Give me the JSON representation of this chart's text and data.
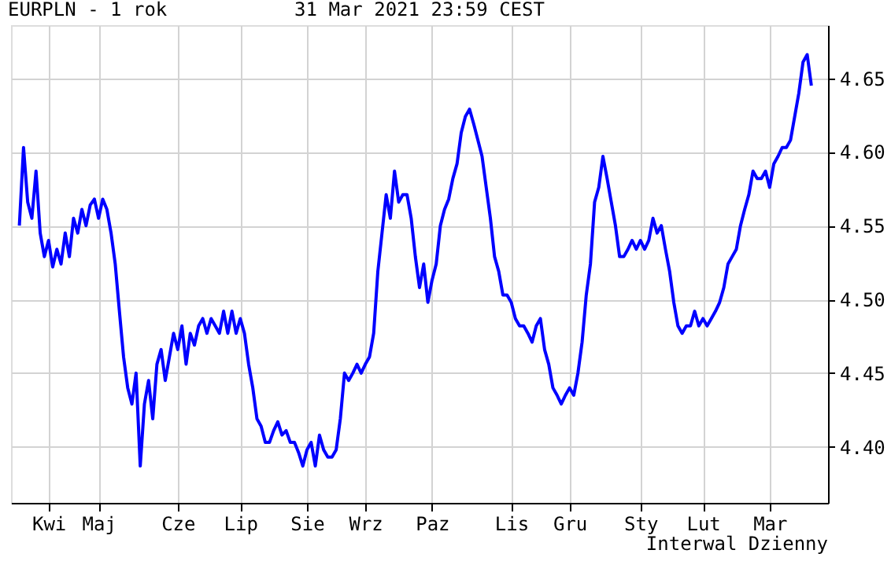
{
  "chart_data": {
    "type": "line",
    "title": "EURPLN - 1 rok",
    "annotations": [
      "31 Mar 2021 23:59 CEST",
      "Interwal Dzienny"
    ],
    "categories": [
      null,
      null,
      null,
      null,
      null,
      null,
      null,
      "Kwi",
      null,
      null,
      null,
      null,
      null,
      null,
      null,
      null,
      null,
      null,
      null,
      "Maj",
      null,
      null,
      null,
      null,
      null,
      null,
      null,
      null,
      null,
      null,
      null,
      null,
      null,
      null,
      null,
      null,
      null,
      null,
      "Cze",
      null,
      null,
      null,
      null,
      null,
      null,
      null,
      null,
      null,
      null,
      null,
      null,
      null,
      null,
      "Lip",
      null,
      null,
      null,
      null,
      null,
      null,
      null,
      null,
      null,
      null,
      null,
      null,
      null,
      null,
      null,
      "Sie",
      null,
      null,
      null,
      null,
      null,
      null,
      null,
      null,
      null,
      null,
      null,
      null,
      null,
      "Wrz",
      null,
      null,
      null,
      null,
      null,
      null,
      null,
      null,
      null,
      null,
      null,
      null,
      null,
      null,
      null,
      "Paz",
      null,
      null,
      null,
      null,
      null,
      null,
      null,
      null,
      null,
      null,
      null,
      null,
      null,
      null,
      null,
      null,
      null,
      null,
      "Lis",
      null,
      null,
      null,
      null,
      null,
      null,
      null,
      null,
      null,
      null,
      null,
      null,
      null,
      "Gru",
      null,
      null,
      null,
      null,
      null,
      null,
      null,
      null,
      null,
      null,
      null,
      null,
      null,
      null,
      null,
      null,
      "Sty",
      null,
      null,
      null,
      null,
      null,
      null,
      null,
      null,
      null,
      null,
      null,
      null,
      null,
      null,
      "Lut",
      null,
      null,
      null,
      null,
      null,
      null,
      null,
      null,
      null,
      null,
      null,
      null,
      null,
      null,
      null,
      "Mar",
      null,
      null,
      null,
      null,
      null,
      null,
      null,
      null,
      null,
      null
    ],
    "series": [
      {
        "color": "#0000ff",
        "values": [
          4.55,
          4.603,
          4.566,
          4.555,
          4.587,
          4.545,
          4.529,
          4.54,
          4.522,
          4.534,
          4.524,
          4.545,
          4.529,
          4.555,
          4.545,
          4.561,
          4.55,
          4.564,
          4.568,
          4.555,
          4.568,
          4.561,
          4.545,
          4.524,
          4.492,
          4.461,
          4.44,
          4.429,
          4.45,
          4.387,
          4.429,
          4.445,
          4.419,
          4.456,
          4.466,
          4.445,
          4.461,
          4.477,
          4.466,
          4.482,
          4.456,
          4.477,
          4.469,
          4.482,
          4.487,
          4.477,
          4.487,
          4.482,
          4.477,
          4.492,
          4.477,
          4.492,
          4.477,
          4.487,
          4.477,
          4.456,
          4.44,
          4.419,
          4.414,
          4.403,
          4.403,
          4.411,
          4.417,
          4.408,
          4.411,
          4.403,
          4.403,
          4.396,
          4.387,
          4.398,
          4.403,
          4.387,
          4.408,
          4.398,
          4.393,
          4.393,
          4.398,
          4.419,
          4.45,
          4.445,
          4.45,
          4.456,
          4.45,
          4.456,
          4.461,
          4.477,
          4.519,
          4.545,
          4.571,
          4.555,
          4.587,
          4.566,
          4.571,
          4.571,
          4.555,
          4.529,
          4.508,
          4.524,
          4.498,
          4.513,
          4.524,
          4.55,
          4.561,
          4.568,
          4.582,
          4.592,
          4.613,
          4.624,
          4.629,
          4.619,
          4.608,
          4.597,
          4.576,
          4.555,
          4.529,
          4.519,
          4.503,
          4.503,
          4.498,
          4.487,
          4.482,
          4.482,
          4.477,
          4.471,
          4.482,
          4.487,
          4.466,
          4.456,
          4.44,
          4.435,
          4.429,
          4.435,
          4.44,
          4.435,
          4.45,
          4.471,
          4.503,
          4.524,
          4.566,
          4.576,
          4.597,
          4.582,
          4.566,
          4.55,
          4.529,
          4.529,
          4.534,
          4.54,
          4.534,
          4.54,
          4.534,
          4.54,
          4.555,
          4.545,
          4.55,
          4.534,
          4.519,
          4.498,
          4.482,
          4.477,
          4.482,
          4.482,
          4.492,
          4.482,
          4.487,
          4.482,
          4.487,
          4.492,
          4.498,
          4.508,
          4.524,
          4.529,
          4.534,
          4.55,
          4.561,
          4.571,
          4.587,
          4.582,
          4.582,
          4.587,
          4.576,
          4.592,
          4.597,
          4.603,
          4.603,
          4.608,
          4.624,
          4.64,
          4.661,
          4.666,
          4.645
        ]
      }
    ],
    "ylim": [
      4.362,
      4.686
    ],
    "yticks": [
      {
        "value": 4.4,
        "label": "4.40"
      },
      {
        "value": 4.45,
        "label": "4.45"
      },
      {
        "value": 4.5,
        "label": "4.50"
      },
      {
        "value": 4.55,
        "label": "4.55"
      },
      {
        "value": 4.6,
        "label": "4.60"
      },
      {
        "value": 4.65,
        "label": "4.65"
      }
    ],
    "grid": true,
    "line_style": "solid",
    "marker": "none"
  }
}
